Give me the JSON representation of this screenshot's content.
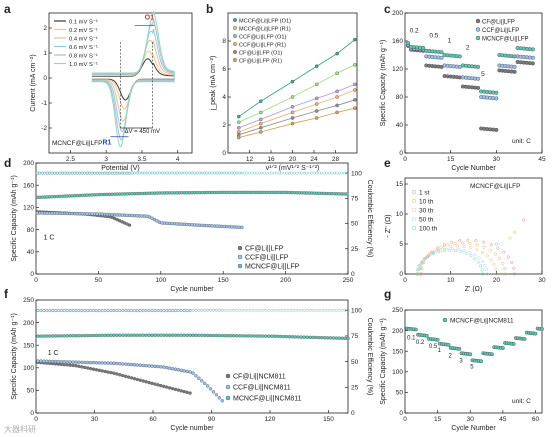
{
  "panel_letters": [
    "a",
    "b",
    "c",
    "d",
    "e",
    "f",
    "g"
  ],
  "watermark": "大器科研",
  "chart_data": [
    {
      "panel": "a",
      "type": "line",
      "xlabel": "Potential (V)",
      "ylabel": "Current (mA cm⁻²)",
      "xlim": [
        2.2,
        4.2
      ],
      "xticks": [
        2.5,
        3.0,
        3.5,
        4.0
      ],
      "ylim": [
        -3,
        2.6
      ],
      "yticks": [
        -2,
        -1,
        0,
        1,
        2
      ],
      "legend": [
        "0.1 mV S⁻¹",
        "0.2 mV S⁻¹",
        "0.4 mV S⁻¹",
        "0.6 mV S⁻¹",
        "0.8 mV S⁻¹",
        "1.0 mV S⁻¹"
      ],
      "series_colors": [
        "#3a3a3a",
        "#ffbf8f",
        "#d9c2a0",
        "#90c8ec",
        "#b9b9b9",
        "#8fd9c6"
      ],
      "scan_rate_factors": [
        0.32,
        0.45,
        0.63,
        0.78,
        0.9,
        1.0
      ],
      "annotations": {
        "peak_oxidation": "O1",
        "peak_reduction": "R1",
        "delta_v": "ΔV = 450 mV",
        "sample": "MCNCF@Li||LFP"
      },
      "oxidation_peak_v": 3.65,
      "reduction_peak_v": 3.2
    },
    {
      "panel": "b",
      "type": "scatter",
      "xlabel": "v¹ᐟ² (mV¹ᐟ² S⁻¹ᐟ²)",
      "ylabel": "j_peak (mA cm⁻²)",
      "xlim": [
        8,
        32
      ],
      "xticks": [
        12,
        16,
        20,
        24,
        28
      ],
      "ylim": [
        0,
        10
      ],
      "yticks": [
        0,
        2,
        4,
        6,
        8
      ],
      "x": [
        10,
        14.1,
        20,
        24.5,
        28.3,
        31.6
      ],
      "series": [
        {
          "name": "MCCF@Li||LFP (O1)",
          "color": "#3ca58e",
          "values": [
            2.6,
            3.7,
            5.1,
            6.2,
            7.1,
            8.1
          ]
        },
        {
          "name": "MCCF@Li||LFP (R1)",
          "color": "#a9d98c",
          "values": [
            2.2,
            2.9,
            4.0,
            4.9,
            5.7,
            6.3
          ]
        },
        {
          "name": "CCF@Li||LFP (O1)",
          "color": "#b3a6d9",
          "values": [
            1.8,
            2.4,
            3.3,
            3.9,
            4.4,
            4.9
          ]
        },
        {
          "name": "CCF@Li||LFP (R1)",
          "color": "#f0b07a",
          "values": [
            1.5,
            2.1,
            2.9,
            3.5,
            4.0,
            4.5
          ]
        },
        {
          "name": "CF@Li||LFP (O1)",
          "color": "#8f8f8f",
          "values": [
            1.3,
            1.8,
            2.5,
            3.0,
            3.4,
            3.8
          ]
        },
        {
          "name": "CF@Li||LFP (R1)",
          "color": "#c9a85e",
          "values": [
            1.1,
            1.5,
            2.1,
            2.5,
            2.9,
            3.2
          ]
        }
      ]
    },
    {
      "panel": "c",
      "type": "scatter",
      "xlabel": "Cycle Number",
      "ylabel": "Specific Capacity (mAh g⁻¹)",
      "xlim": [
        0,
        45
      ],
      "xticks": [
        0,
        15,
        30,
        45
      ],
      "ylim": [
        0,
        200
      ],
      "yticks": [
        0,
        40,
        80,
        120,
        160,
        200
      ],
      "rate_labels": [
        "0.2",
        "0.5",
        "1",
        "2",
        "5"
      ],
      "unit_note": "unit: C",
      "series": [
        {
          "name": "CF@Li||LFP",
          "color": "#7a7a7a",
          "segments": [
            148,
            125,
            110,
            95,
            35,
            118,
            130
          ]
        },
        {
          "name": "CCF@Li||LFP",
          "color": "#9cc2f0",
          "segments": [
            150,
            138,
            125,
            108,
            80,
            125,
            138
          ]
        },
        {
          "name": "MCNCF@Li||LFP",
          "color": "#5cc7b4",
          "segments": [
            152,
            146,
            140,
            125,
            88,
            140,
            150
          ]
        }
      ]
    },
    {
      "panel": "d",
      "type": "scatter",
      "xlabel": "Cycle number",
      "ylabel": "Specific Capacity (mAh g⁻¹)",
      "y2label": "Coulombic Efficiency (%)",
      "xlim": [
        0,
        250
      ],
      "xticks": [
        0,
        50,
        100,
        150,
        200,
        250
      ],
      "ylim": [
        0,
        200
      ],
      "yticks": [
        0,
        40,
        80,
        120,
        160,
        200
      ],
      "y2lim": [
        0,
        110
      ],
      "y2ticks": [
        0,
        25,
        50,
        75,
        100
      ],
      "rate_note": "1 C",
      "series": [
        {
          "name": "CF@Li||LFP",
          "color": "#7a7a7a",
          "capacity_points": [
            [
              1,
              112
            ],
            [
              20,
              110
            ],
            [
              40,
              108
            ],
            [
              60,
              103
            ],
            [
              75,
              88
            ]
          ],
          "ce_level": 99
        },
        {
          "name": "CCF@Li||LFP",
          "color": "#9cc2f0",
          "capacity_points": [
            [
              1,
              110
            ],
            [
              50,
              108
            ],
            [
              90,
              104
            ],
            [
              95,
              98
            ],
            [
              100,
              92
            ],
            [
              130,
              88
            ],
            [
              165,
              84
            ]
          ],
          "ce_level": 99
        },
        {
          "name": "MCNCF@Li||LFP",
          "color": "#5cc7b4",
          "capacity_points": [
            [
              1,
              138
            ],
            [
              50,
              143
            ],
            [
              100,
              146
            ],
            [
              150,
              147
            ],
            [
              200,
              147
            ],
            [
              250,
              144
            ]
          ],
          "ce_level": 100
        }
      ]
    },
    {
      "panel": "e",
      "type": "scatter",
      "xlabel": "Z' (Ω)",
      "ylabel": "- Z'' (Ω)",
      "xlim": [
        0,
        30
      ],
      "xticks": [
        0,
        10,
        20,
        30
      ],
      "ylim": [
        0,
        16
      ],
      "yticks": [
        0,
        5,
        10,
        15
      ],
      "sample": "MCNCF@Li||LFP",
      "series": [
        {
          "name": "1 st",
          "color": "#e07070",
          "semicircle": [
            3.5,
            24
          ],
          "tail_end": [
            26,
            9
          ]
        },
        {
          "name": "10 th",
          "color": "#f0a44a",
          "semicircle": [
            3.2,
            22
          ],
          "tail_end": [
            24,
            7
          ]
        },
        {
          "name": "30 th",
          "color": "#d9b97a",
          "semicircle": [
            3.0,
            20
          ],
          "tail_end": [
            23,
            6
          ]
        },
        {
          "name": "50 th",
          "color": "#9ad0ed",
          "semicircle": [
            2.8,
            18
          ],
          "tail_end": [
            21,
            5
          ]
        },
        {
          "name": "100 th",
          "color": "#5cc7b4",
          "semicircle": [
            2.6,
            17
          ],
          "tail_end": [
            20,
            5
          ]
        }
      ]
    },
    {
      "panel": "f",
      "type": "scatter",
      "xlabel": "Cycle number",
      "ylabel": "Specific Capacity (mAh g⁻¹)",
      "y2label": "Coulombic Efficiency (%)",
      "xlim": [
        0,
        160
      ],
      "xticks": [
        0,
        30,
        60,
        90,
        120,
        150
      ],
      "ylim": [
        0,
        250
      ],
      "yticks": [
        0,
        50,
        100,
        150,
        200,
        250
      ],
      "y2lim": [
        0,
        110
      ],
      "y2ticks": [
        0,
        25,
        50,
        75,
        100
      ],
      "rate_note": "1 C",
      "series": [
        {
          "name": "CF@Li||NCM811",
          "color": "#7a7a7a",
          "capacity_points": [
            [
              1,
              112
            ],
            [
              20,
              105
            ],
            [
              40,
              88
            ],
            [
              60,
              65
            ],
            [
              80,
              43
            ]
          ],
          "ce_level": 99
        },
        {
          "name": "CCF@Li||NCM811",
          "color": "#9cc2f0",
          "capacity_points": [
            [
              1,
              115
            ],
            [
              40,
              110
            ],
            [
              65,
              102
            ],
            [
              80,
              90
            ],
            [
              88,
              60
            ],
            [
              96,
              25
            ]
          ],
          "ce_level": 99
        },
        {
          "name": "MCNCF@Li||NCM811",
          "color": "#5cc7b4",
          "capacity_points": [
            [
              1,
              170
            ],
            [
              40,
              172
            ],
            [
              80,
              172
            ],
            [
              120,
              170
            ],
            [
              160,
              165
            ]
          ],
          "ce_level": 100
        }
      ]
    },
    {
      "panel": "g",
      "type": "scatter",
      "xlabel": "Cycle Number",
      "ylabel": "Specific Capacity (mAh g⁻¹)",
      "xlim": [
        0,
        63
      ],
      "xticks": [
        0,
        15,
        30,
        45,
        60
      ],
      "ylim": [
        0,
        250
      ],
      "yticks": [
        0,
        50,
        100,
        150,
        200,
        250
      ],
      "sample": "MCNCF@Li||NCM811",
      "rate_labels": [
        "0.1",
        "0.2",
        "0.5",
        "1",
        "2",
        "3",
        "5"
      ],
      "unit_note": "unit: C",
      "color": "#5cc7b4",
      "segments": [
        205,
        190,
        180,
        168,
        158,
        145,
        128,
        145,
        160,
        170,
        182,
        195,
        205
      ]
    }
  ]
}
